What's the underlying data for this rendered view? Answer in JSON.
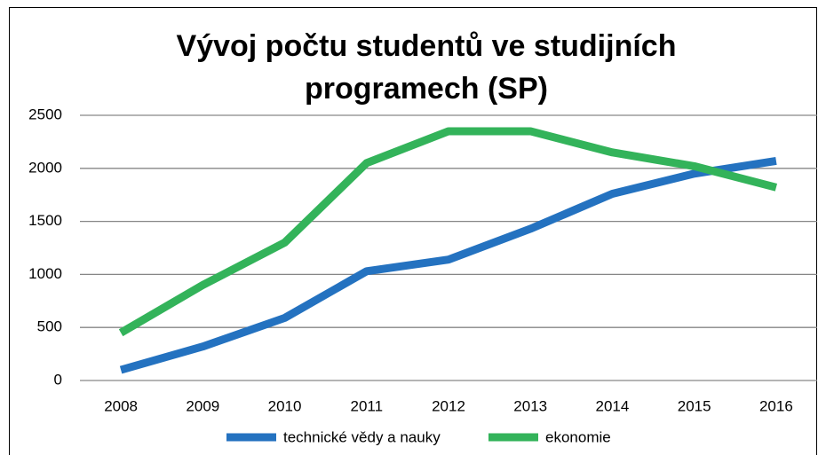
{
  "chart_data": {
    "type": "line",
    "title_lines": [
      "Vývoj počtu studentů ve studijních",
      "programech (SP)"
    ],
    "categories": [
      "2008",
      "2009",
      "2010",
      "2011",
      "2012",
      "2013",
      "2014",
      "2015",
      "2016"
    ],
    "series": [
      {
        "name": "technické vědy a nauky",
        "color": "#2472c0",
        "values": [
          100,
          320,
          590,
          1030,
          1140,
          1430,
          1760,
          1950,
          2070
        ]
      },
      {
        "name": "ekonomie",
        "color": "#33b35a",
        "values": [
          450,
          900,
          1300,
          2050,
          2350,
          2350,
          2150,
          2020,
          1820
        ]
      }
    ],
    "ylim": [
      0,
      2500
    ],
    "yticks": [
      0,
      500,
      1000,
      1500,
      2000,
      2500
    ],
    "grid": true,
    "legend": "bottom"
  }
}
